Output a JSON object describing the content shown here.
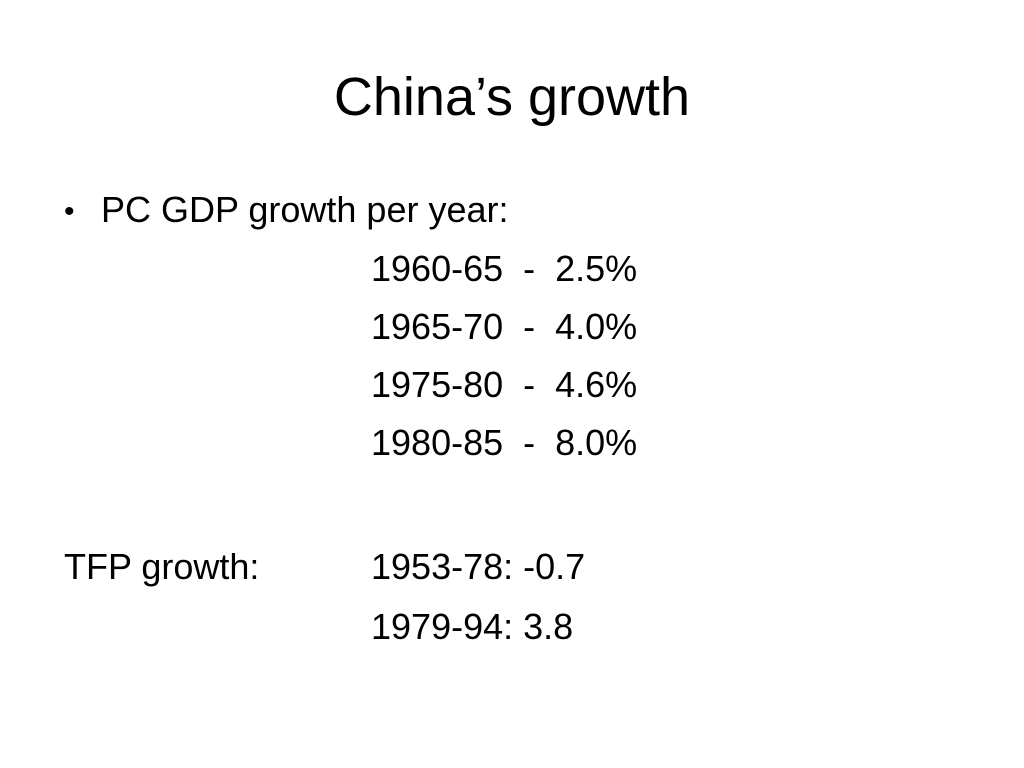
{
  "slide": {
    "title": "China’s growth",
    "bullet_marker": "•",
    "bullet_text": "PC GDP growth per year:",
    "gdp_rows": [
      "1960-65  -  2.5%",
      "1965-70  -  4.0%",
      "1975-80  -  4.6%",
      "1980-85  -  8.0%"
    ],
    "tfp_label": "TFP growth:",
    "tfp_rows": [
      "1953-78: -0.7",
      "1979-94: 3.8"
    ]
  }
}
